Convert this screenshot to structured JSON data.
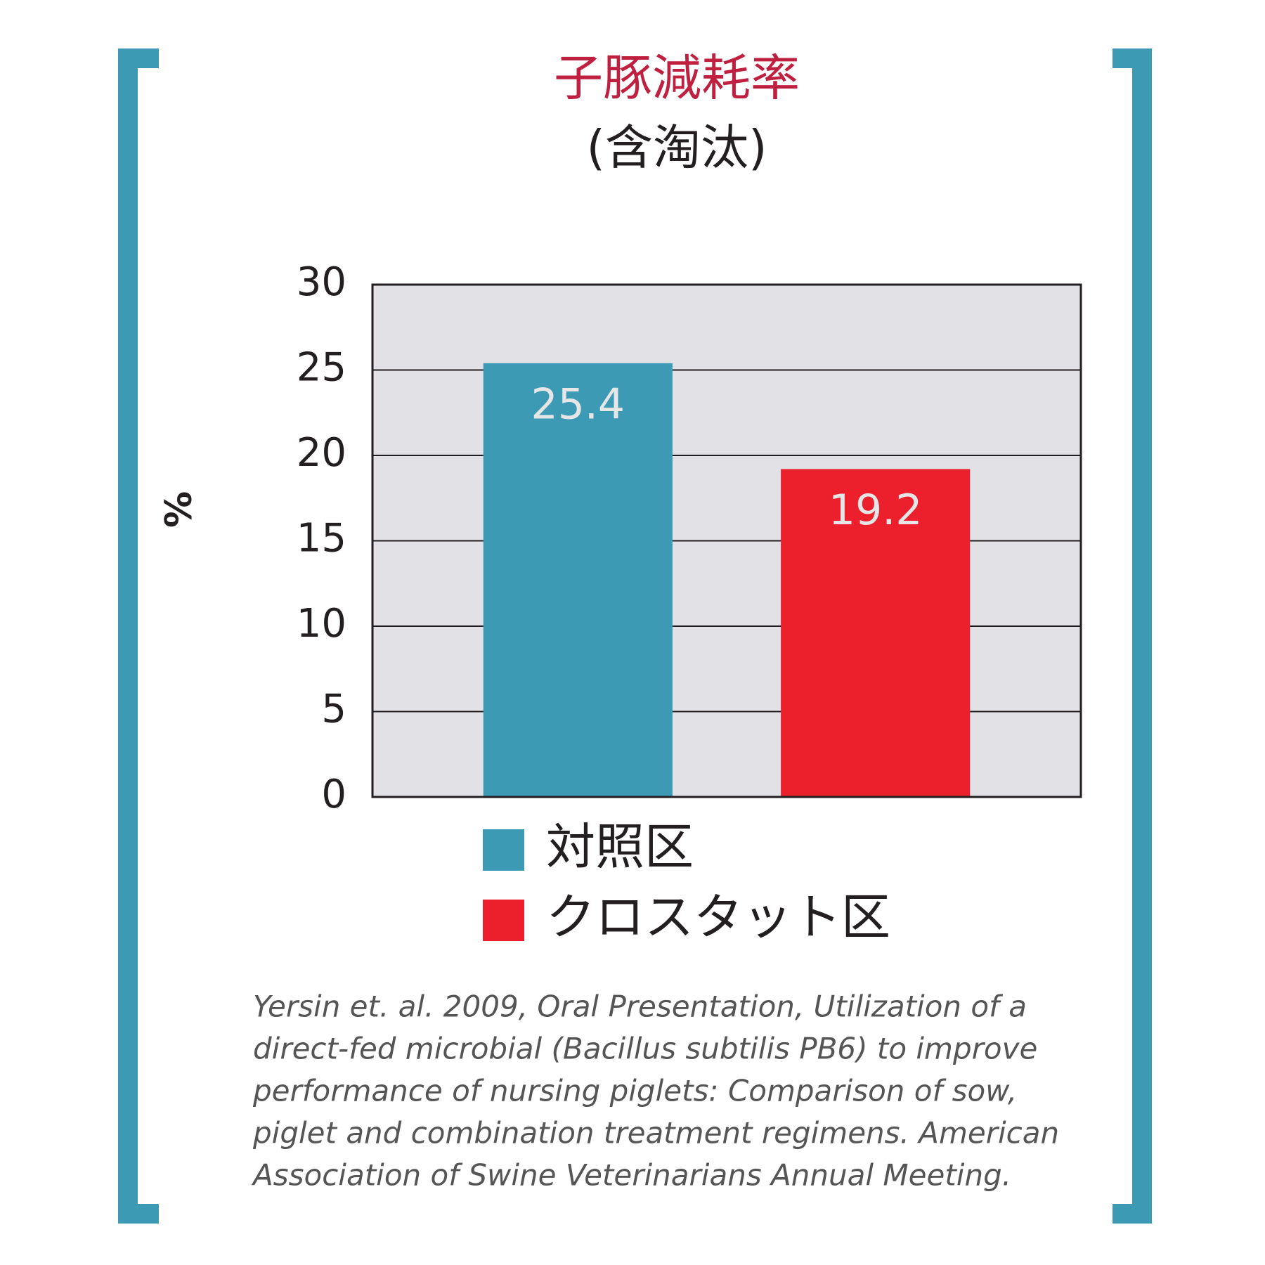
{
  "chart_data": {
    "type": "bar",
    "title": "子豚減耗率",
    "subtitle": "(含淘汰)",
    "y_label": "%",
    "categories": [
      null
    ],
    "series": [
      {
        "name": "対照区",
        "color": "#3d9ab5",
        "values": [
          25.4
        ]
      },
      {
        "name": "クロスタット区",
        "color": "#ec1f2d",
        "values": [
          19.2
        ]
      }
    ],
    "ylim": [
      0,
      30
    ],
    "yticks": [
      0,
      5,
      10,
      15,
      20,
      25,
      30
    ],
    "grid": true,
    "footnote": [
      "Yersin et. al. 2009, Oral Presentation, Utilization of a",
      "direct-fed microbial (Bacillus subtilis PB6) to improve",
      "performance of nursing piglets: Comparison of sow,",
      "piglet and combination treatment regimens. American",
      "Association of Swine Veterinarians Annual Meeting."
    ]
  }
}
